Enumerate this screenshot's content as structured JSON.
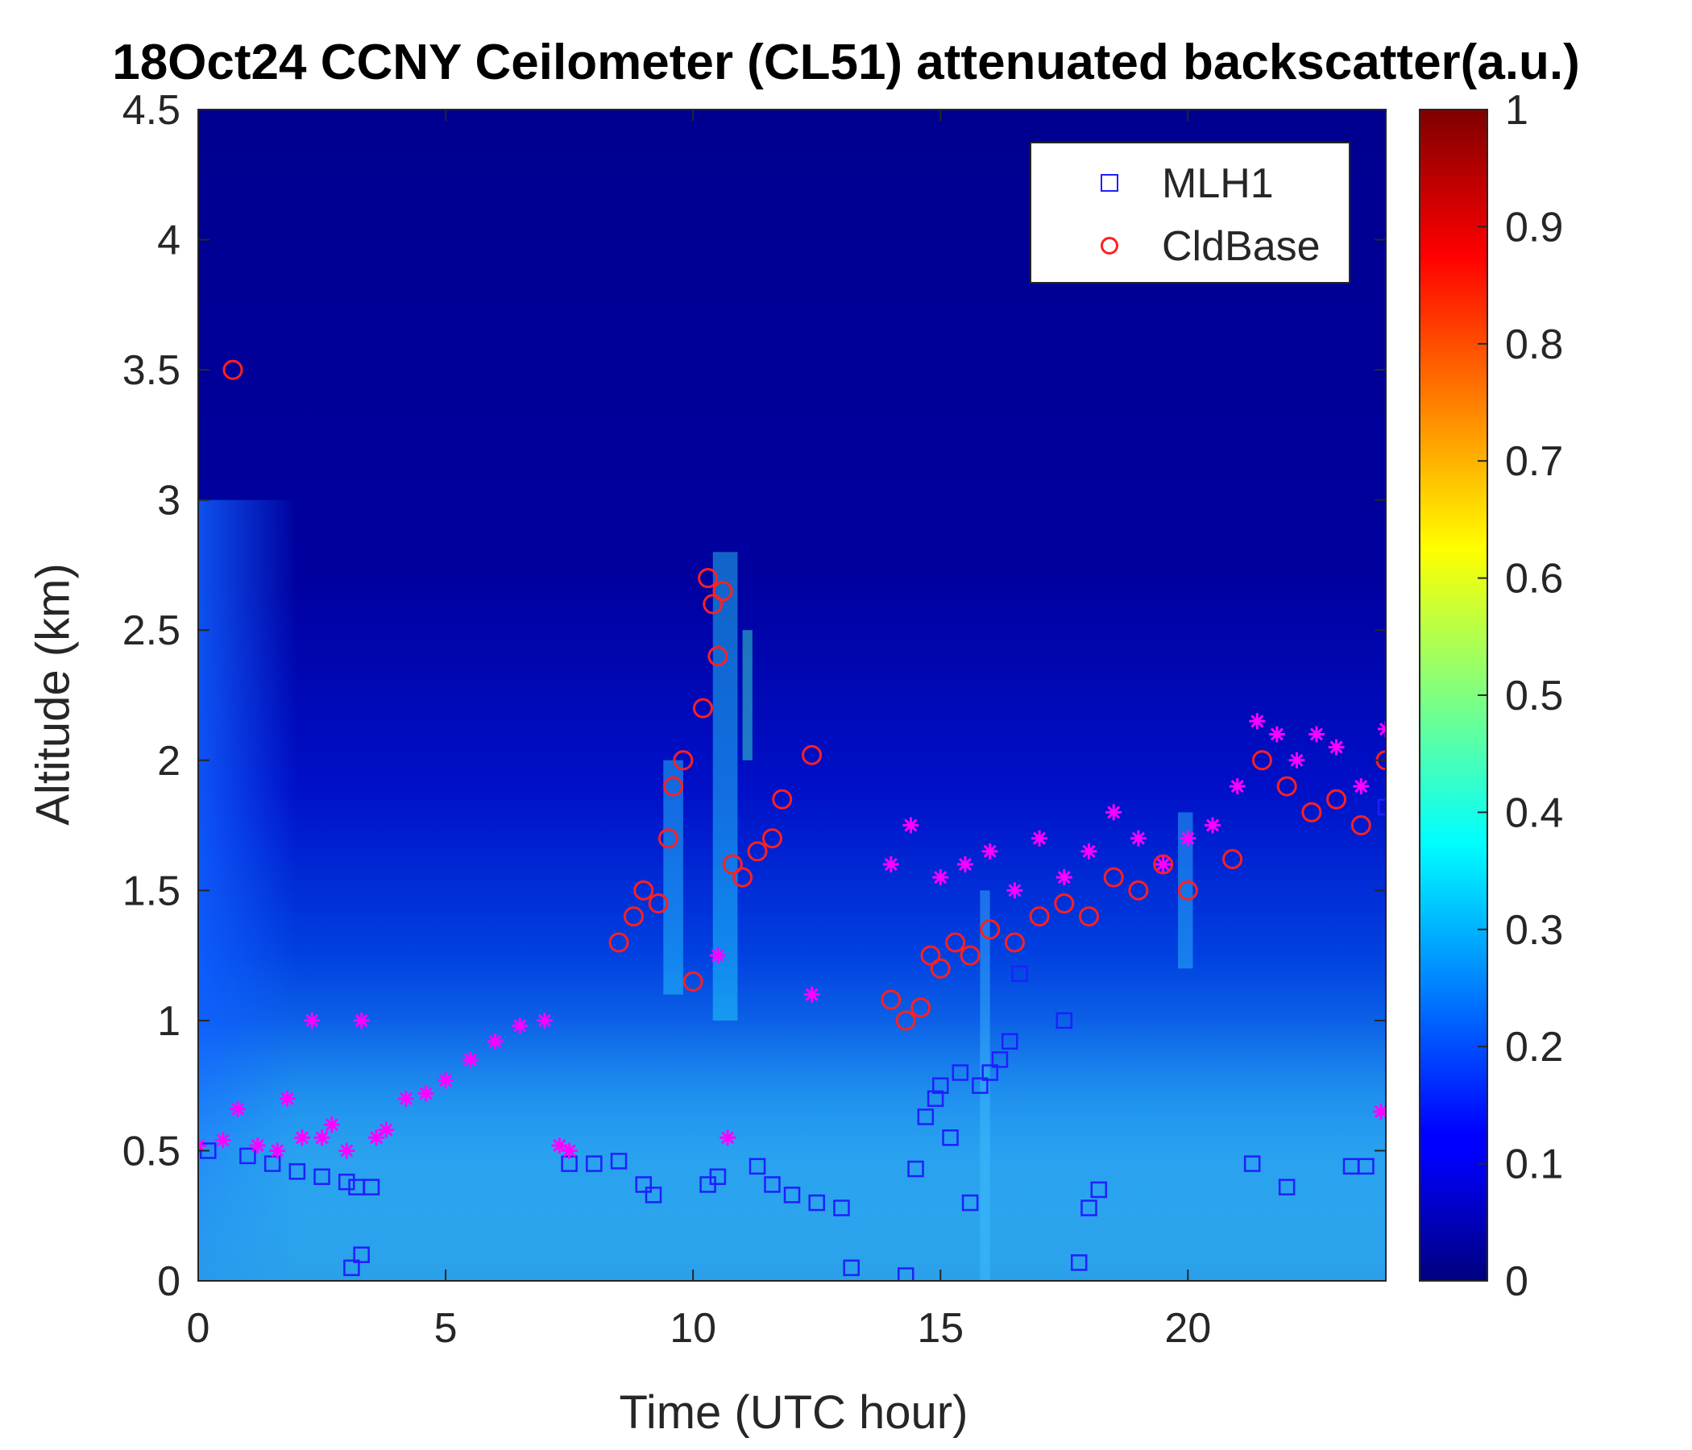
{
  "title": "18Oct24 CCNY Ceilometer (CL51) attenuated backscatter(a.u.)",
  "chart_data": {
    "type": "heatmap",
    "title": "18Oct24 CCNY Ceilometer (CL51) attenuated backscatter(a.u.)",
    "xlabel": "Time (UTC hour)",
    "ylabel": "Altitude (km)",
    "xlim": [
      0,
      24
    ],
    "ylim": [
      0,
      4.5
    ],
    "x_ticks": [
      0,
      5,
      10,
      15,
      20
    ],
    "y_ticks": [
      0,
      0.5,
      1,
      1.5,
      2,
      2.5,
      3,
      3.5,
      4,
      4.5
    ],
    "colorbar": {
      "colormap": "jet",
      "range": [
        0,
        1
      ],
      "ticks": [
        0,
        0.1,
        0.2,
        0.3,
        0.4,
        0.5,
        0.6,
        0.7,
        0.8,
        0.9,
        1
      ]
    },
    "grid": false,
    "legend_position": "top-right",
    "series": [
      {
        "name": "MLH1",
        "marker": "square",
        "color": "#1f1fff",
        "x": [
          0.2,
          1.0,
          1.5,
          2.0,
          2.5,
          3.0,
          3.2,
          3.5,
          3.1,
          3.3,
          7.5,
          8.0,
          8.5,
          9.0,
          9.2,
          10.3,
          10.5,
          11.3,
          11.6,
          12.0,
          12.5,
          13.0,
          13.2,
          14.3,
          14.5,
          14.7,
          14.9,
          15.0,
          15.2,
          15.4,
          15.6,
          15.8,
          16.0,
          16.2,
          16.4,
          16.6,
          17.5,
          17.8,
          18.0,
          18.2,
          21.3,
          22.0,
          23.3,
          23.6,
          24.0
        ],
        "y": [
          0.5,
          0.48,
          0.45,
          0.42,
          0.4,
          0.38,
          0.36,
          0.36,
          0.05,
          0.1,
          0.45,
          0.45,
          0.46,
          0.37,
          0.33,
          0.37,
          0.4,
          0.44,
          0.37,
          0.33,
          0.3,
          0.28,
          0.05,
          0.02,
          0.43,
          0.63,
          0.7,
          0.75,
          0.55,
          0.8,
          0.3,
          0.75,
          0.8,
          0.85,
          0.92,
          1.18,
          1.0,
          0.07,
          0.28,
          0.35,
          0.45,
          0.36,
          0.44,
          0.44,
          1.82
        ]
      },
      {
        "name": "CldBase",
        "marker": "circle",
        "color": "#ff2020",
        "x": [
          0.7,
          8.5,
          8.8,
          9.0,
          9.3,
          9.5,
          9.6,
          9.8,
          10.0,
          10.2,
          10.3,
          10.4,
          10.5,
          10.6,
          10.8,
          11.0,
          11.3,
          11.6,
          11.8,
          12.4,
          14.0,
          14.3,
          14.6,
          14.8,
          15.0,
          15.3,
          15.6,
          16.0,
          16.5,
          17.0,
          17.5,
          18.0,
          18.5,
          19.0,
          19.5,
          20.0,
          20.9,
          21.5,
          22.0,
          22.5,
          23.0,
          23.5,
          24.0
        ],
        "y": [
          3.5,
          1.3,
          1.4,
          1.5,
          1.45,
          1.7,
          1.9,
          2.0,
          1.15,
          2.2,
          2.7,
          2.6,
          2.4,
          2.65,
          1.6,
          1.55,
          1.65,
          1.7,
          1.85,
          2.02,
          1.08,
          1.0,
          1.05,
          1.25,
          1.2,
          1.3,
          1.25,
          1.35,
          1.3,
          1.4,
          1.45,
          1.4,
          1.55,
          1.5,
          1.6,
          1.5,
          1.62,
          2.0,
          1.9,
          1.8,
          1.85,
          1.75,
          2.0
        ]
      },
      {
        "name": "",
        "marker": "asterisk",
        "color": "#ff00ff",
        "x": [
          0.0,
          0.5,
          0.8,
          1.2,
          1.6,
          1.8,
          2.1,
          2.3,
          2.5,
          2.7,
          3.0,
          3.3,
          3.6,
          3.8,
          4.2,
          4.6,
          5.0,
          5.5,
          6.0,
          6.5,
          7.0,
          7.3,
          7.5,
          10.5,
          10.7,
          12.4,
          14.0,
          14.4,
          15.0,
          15.5,
          16.0,
          16.5,
          17.0,
          17.5,
          18.0,
          18.5,
          19.0,
          19.5,
          20.0,
          20.5,
          21.0,
          21.4,
          21.8,
          22.2,
          22.6,
          23.0,
          23.5,
          23.9,
          24.0
        ],
        "y": [
          0.52,
          0.54,
          0.66,
          0.52,
          0.5,
          0.7,
          0.55,
          1.0,
          0.55,
          0.6,
          0.5,
          1.0,
          0.55,
          0.58,
          0.7,
          0.72,
          0.77,
          0.85,
          0.92,
          0.98,
          1.0,
          0.52,
          0.5,
          1.25,
          0.55,
          1.1,
          1.6,
          1.75,
          1.55,
          1.6,
          1.65,
          1.5,
          1.7,
          1.55,
          1.65,
          1.8,
          1.7,
          1.6,
          1.7,
          1.75,
          1.9,
          2.15,
          2.1,
          2.0,
          2.1,
          2.05,
          1.9,
          0.65,
          2.12
        ]
      }
    ]
  }
}
